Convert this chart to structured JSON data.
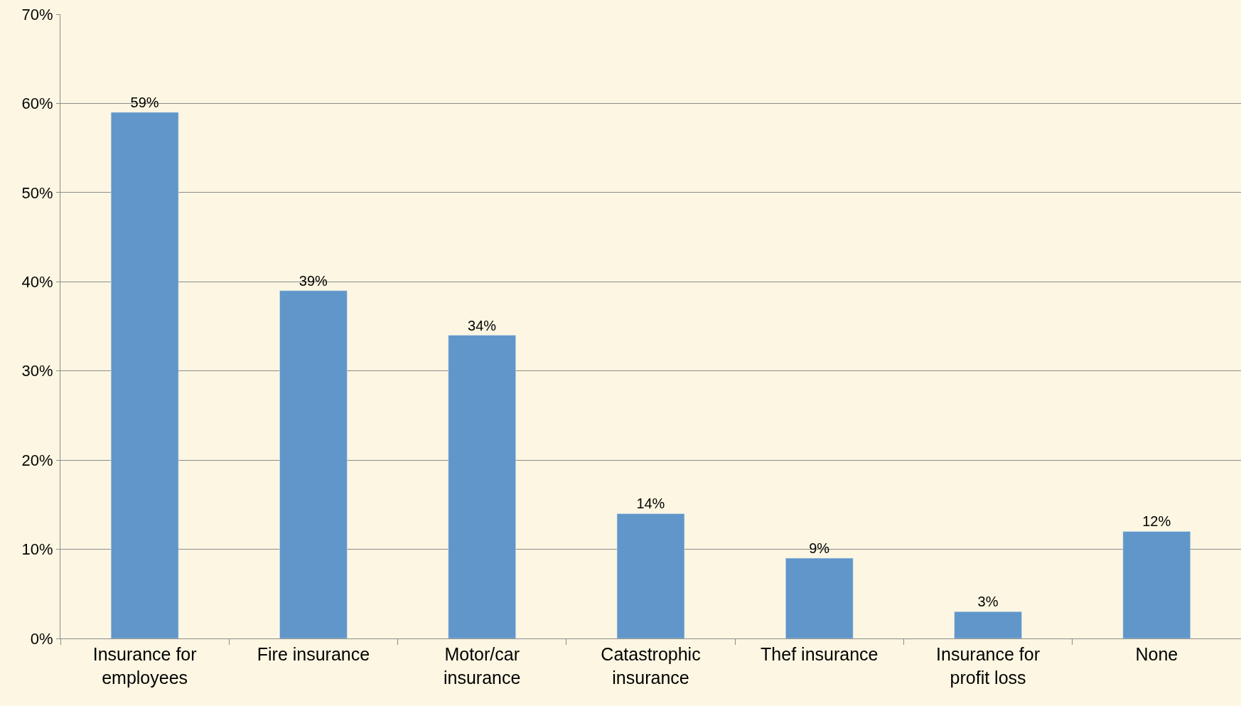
{
  "chart_data": {
    "type": "bar",
    "categories": [
      "Insurance for employees",
      "Fire insurance",
      "Motor/car insurance",
      "Catastrophic insurance",
      "Thef insurance",
      "Insurance for profit loss",
      "None"
    ],
    "values": [
      59,
      39,
      34,
      14,
      9,
      3,
      12
    ],
    "value_labels": [
      "59%",
      "39%",
      "34%",
      "14%",
      "9%",
      "3%",
      "12%"
    ],
    "color": "#6096c9",
    "ylim": [
      0,
      70
    ],
    "yticks": [
      {
        "value": 0,
        "label": "0%"
      },
      {
        "value": 10,
        "label": "10%"
      },
      {
        "value": 20,
        "label": "20%"
      },
      {
        "value": 30,
        "label": "30%"
      },
      {
        "value": 40,
        "label": "40%"
      },
      {
        "value": 50,
        "label": "50%"
      },
      {
        "value": 60,
        "label": "60%"
      },
      {
        "value": 70,
        "label": "70%"
      }
    ],
    "grid": "y"
  }
}
